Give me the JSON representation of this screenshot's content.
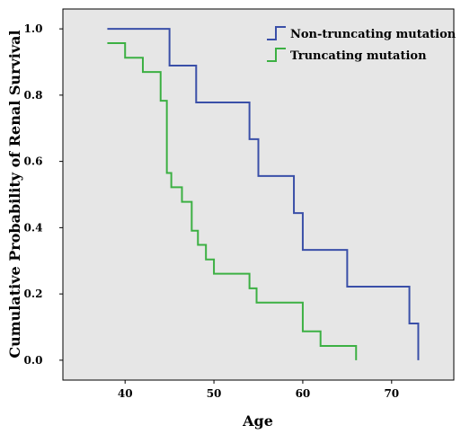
{
  "chart_data": {
    "type": "line",
    "step": true,
    "title": "",
    "xlabel": "Age",
    "ylabel": "Cumulative Probability of Renal Survival",
    "xlim": [
      33,
      77
    ],
    "ylim": [
      -0.06,
      1.06
    ],
    "xticks": [
      40,
      50,
      60,
      70
    ],
    "yticks": [
      0.0,
      0.2,
      0.4,
      0.6,
      0.8,
      1.0
    ],
    "ytick_labels": [
      "0.0",
      "0.2",
      "0.4",
      "0.6",
      "0.8",
      "1.0"
    ],
    "grid": false,
    "legend_position": "top-right",
    "background": "#e6e6e6",
    "series": [
      {
        "name": "Non-truncating mutation",
        "color": "#3a4fa8",
        "x": [
          38,
          45,
          48,
          54,
          55,
          59,
          60,
          65,
          72,
          73,
          73
        ],
        "y": [
          1.0,
          0.889,
          0.778,
          0.667,
          0.556,
          0.444,
          0.333,
          0.222,
          0.111,
          0.0,
          0.0
        ]
      },
      {
        "name": "Truncating mutation",
        "color": "#3cb043",
        "x": [
          38,
          40,
          42,
          44,
          44.7,
          45.2,
          46.4,
          47.5,
          48.2,
          49.1,
          50.0,
          54.0,
          54.8,
          60.0,
          62.0,
          66.0
        ],
        "y": [
          0.957,
          0.913,
          0.87,
          0.783,
          0.565,
          0.522,
          0.478,
          0.391,
          0.348,
          0.304,
          0.261,
          0.217,
          0.174,
          0.087,
          0.043,
          0.0
        ]
      }
    ]
  }
}
